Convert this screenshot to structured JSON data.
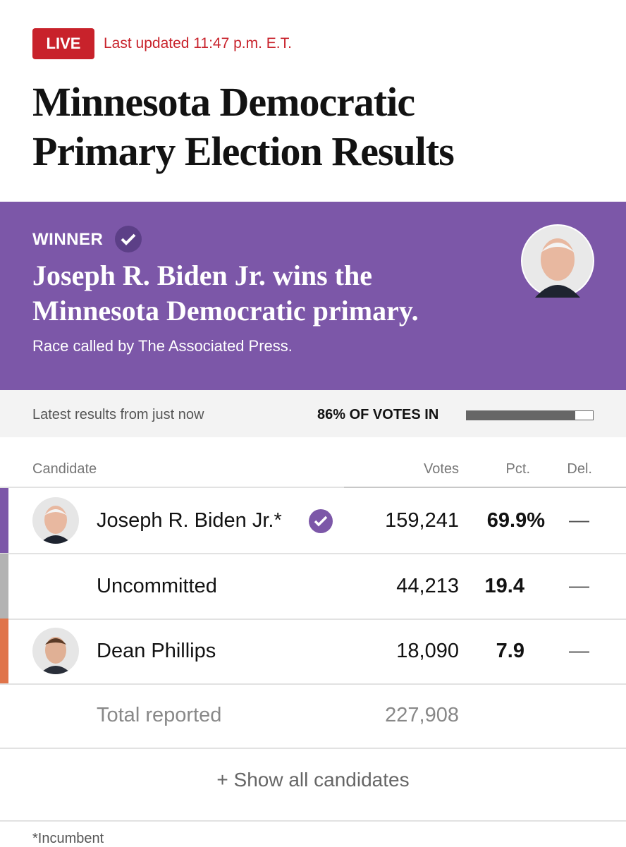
{
  "header": {
    "badge": "LIVE",
    "updated": "Last updated 11:47 p.m. E.T.",
    "title": "Minnesota Democratic Primary Election Results"
  },
  "winner_panel": {
    "label": "WINNER",
    "headline": "Joseph R. Biden Jr. wins the Minnesota Democratic primary.",
    "note": "Race called by The Associated Press.",
    "color": "#7c57a8"
  },
  "status": {
    "latest": "Latest results from just now",
    "progress": {
      "value": 86,
      "label": "86% OF VOTES IN"
    }
  },
  "table": {
    "columns": [
      "Candidate",
      "Votes",
      "Pct.",
      "Del."
    ],
    "rows": [
      {
        "name": "Joseph R. Biden Jr.*",
        "votes": "159,241",
        "pct": "69.9%",
        "del": "—",
        "color": "#7c57a8"
      },
      {
        "name": "Uncommitted",
        "votes": "44,213",
        "pct": "19.4",
        "del": "—",
        "color": "#b3b3b3"
      },
      {
        "name": "Dean Phillips",
        "votes": "18,090",
        "pct": "7.9",
        "del": "—",
        "color": "#e0744a"
      }
    ],
    "total": {
      "label": "Total reported",
      "votes": "227,908"
    }
  },
  "show_all": "+ Show all candidates",
  "footnote": "*Incumbent"
}
